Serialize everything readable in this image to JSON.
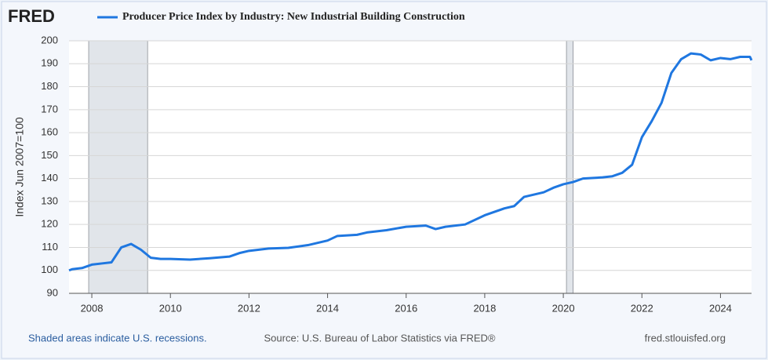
{
  "chart_data": {
    "type": "line",
    "logo": "FRED",
    "title": "Producer Price Index by Industry: New Industrial Building Construction",
    "ylabel": "Index Jun 2007=100",
    "footer_left": "Shaded areas indicate U.S. recessions.",
    "footer_center": "Source: U.S. Bureau of Labor Statistics via FRED®",
    "footer_right": "fred.stlouisfed.org",
    "xlim": [
      2007.42,
      2024.79
    ],
    "xticks": [
      2008,
      2010,
      2012,
      2014,
      2016,
      2018,
      2020,
      2022,
      2024
    ],
    "ylim": [
      90,
      200
    ],
    "yticks": [
      90,
      100,
      110,
      120,
      130,
      140,
      150,
      160,
      170,
      180,
      190,
      200
    ],
    "grid": true,
    "recessions": [
      [
        2007.92,
        2009.42
      ],
      [
        2020.08,
        2020.25
      ]
    ],
    "recession_color": "#e1e5ea",
    "x": [
      2007.42,
      2007.5,
      2007.75,
      2008.0,
      2008.25,
      2008.5,
      2008.75,
      2009.0,
      2009.25,
      2009.5,
      2009.75,
      2010.0,
      2010.5,
      2011.0,
      2011.5,
      2011.75,
      2012.0,
      2012.5,
      2013.0,
      2013.5,
      2014.0,
      2014.25,
      2014.75,
      2015.0,
      2015.5,
      2016.0,
      2016.5,
      2016.75,
      2017.0,
      2017.5,
      2018.0,
      2018.5,
      2018.75,
      2019.0,
      2019.5,
      2019.75,
      2020.0,
      2020.25,
      2020.5,
      2021.0,
      2021.25,
      2021.5,
      2021.75,
      2022.0,
      2022.25,
      2022.5,
      2022.75,
      2023.0,
      2023.25,
      2023.5,
      2023.75,
      2024.0,
      2024.25,
      2024.5,
      2024.75,
      2024.79
    ],
    "series": [
      {
        "name": "Producer Price Index by Industry: New Industrial Building Construction",
        "color": "#1f77e0",
        "values": [
          100,
          100.5,
          101,
          102.5,
          103,
          103.5,
          110,
          111.5,
          109,
          105.5,
          105,
          105,
          104.7,
          105.3,
          106,
          107.5,
          108.5,
          109.5,
          109.8,
          111,
          113,
          115,
          115.5,
          116.5,
          117.5,
          119,
          119.5,
          118,
          119,
          120,
          124,
          127,
          128,
          132,
          134,
          136,
          137.5,
          138.5,
          140,
          140.5,
          141,
          142.5,
          146,
          158,
          165,
          173,
          186,
          192,
          194.5,
          194,
          191.5,
          192.5,
          192,
          193,
          193,
          191.5
        ]
      }
    ]
  }
}
